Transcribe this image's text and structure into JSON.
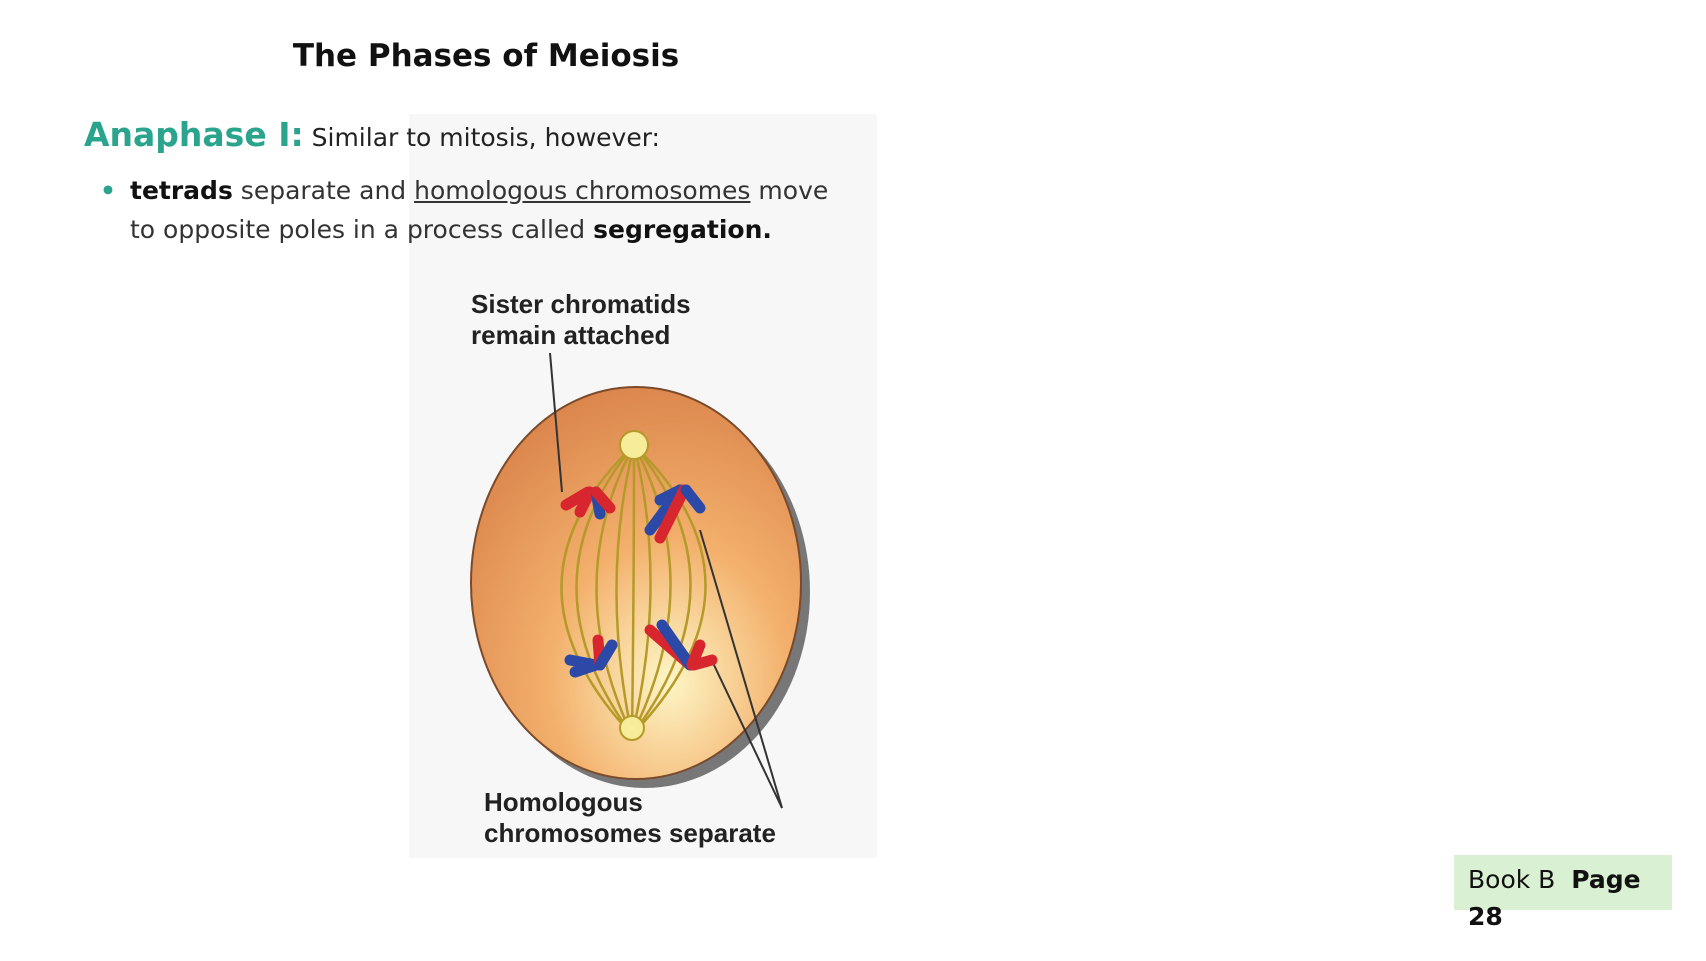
{
  "title": "The Phases of Meiosis",
  "heading": {
    "label": "Anaphase I:",
    "text": "Similar to mitosis, however:"
  },
  "bullet": {
    "term": "tetrads",
    "text1": "separate and",
    "underlined": "homologous chromosomes",
    "text2": "move to opposite poles in a process called",
    "term2": "segregation."
  },
  "figure": {
    "label_top": "Sister chromatids remain attached",
    "label_bottom": "Homologous chromosomes separate"
  },
  "footer": {
    "book": "Book B",
    "page": "Page 28"
  }
}
